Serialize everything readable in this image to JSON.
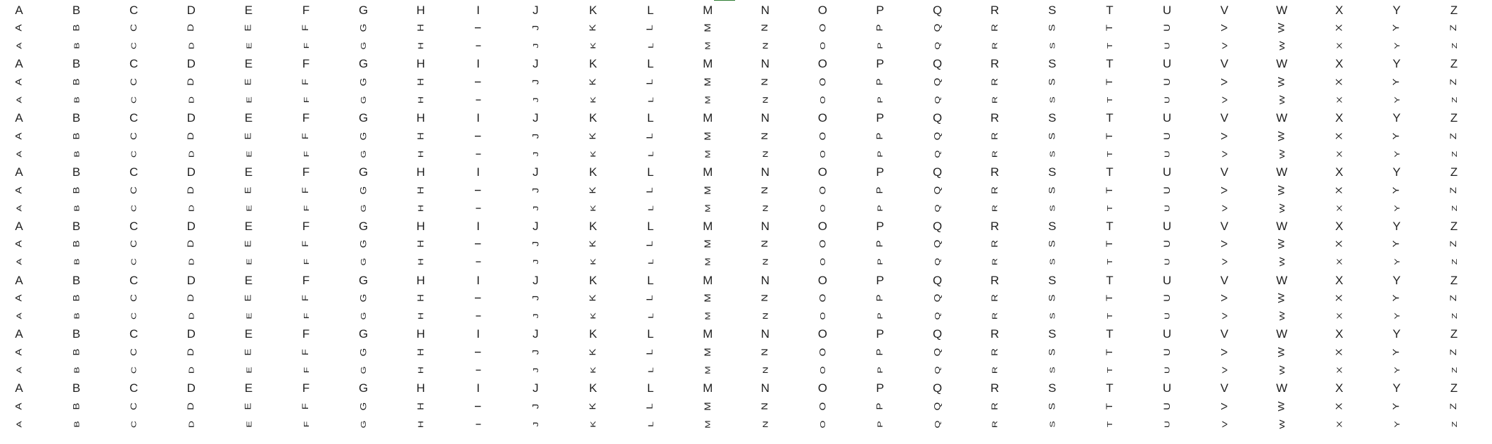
{
  "columns": [
    "A",
    "B",
    "C",
    "D",
    "E",
    "F",
    "G",
    "H",
    "I",
    "J",
    "K",
    "L",
    "M",
    "N",
    "O",
    "P",
    "Q",
    "R",
    "S",
    "T",
    "U",
    "V",
    "W",
    "X",
    "Y",
    "Z"
  ],
  "row_styles": [
    "normal",
    "rot-up",
    "rot-up2",
    "normal",
    "rot-up",
    "rot-up2",
    "normal",
    "rot-up",
    "rot-up2",
    "normal",
    "rot-up",
    "rot-up2",
    "normal",
    "rot-up",
    "rot-up2",
    "normal",
    "rot-up",
    "rot-up2",
    "normal",
    "rot-up",
    "rot-up2",
    "normal",
    "rot-up",
    "rot-up2"
  ],
  "accent_color": "#2e7d32",
  "text_color": "#1f1f1f",
  "background": "#ffffff"
}
